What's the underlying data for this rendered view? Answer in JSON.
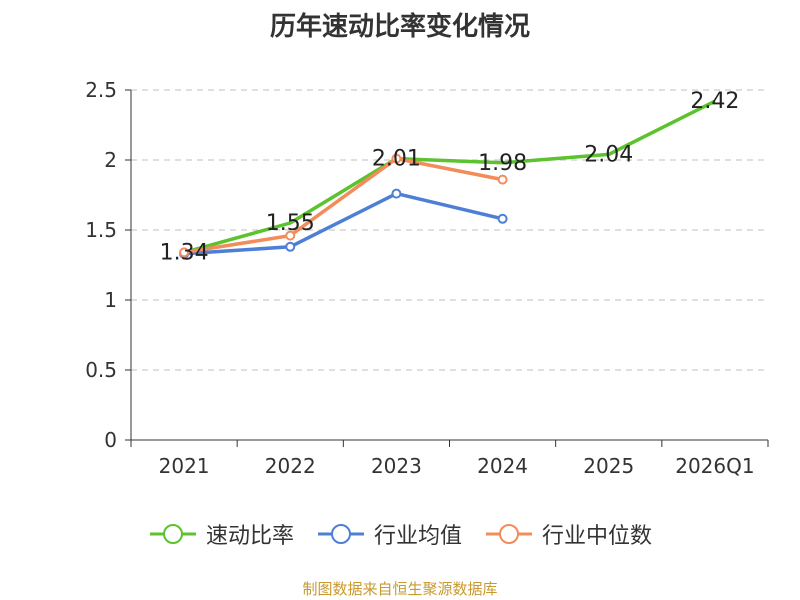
{
  "title": "历年速动比率变化情况",
  "source": "制图数据来自恒生聚源数据库",
  "chart_data": {
    "type": "line",
    "categories": [
      "2021",
      "2022",
      "2023",
      "2024",
      "2025",
      "2026Q1"
    ],
    "ylim": [
      0,
      2.5
    ],
    "yticks": [
      "0",
      "0.5",
      "1",
      "1.5",
      "2",
      "2.5"
    ],
    "ytick_values": [
      0,
      0.5,
      1,
      1.5,
      2,
      2.5
    ],
    "grid": true,
    "legend_position": "bottom",
    "series": [
      {
        "name": "速动比率",
        "color": "#5cc22e",
        "values": [
          1.34,
          1.55,
          2.01,
          1.98,
          2.04,
          2.42
        ],
        "labels": [
          "1.34",
          "1.55",
          "2.01",
          "1.98",
          "2.04",
          "2.42"
        ]
      },
      {
        "name": "行业均值",
        "color": "#4e7fd6",
        "values": [
          1.33,
          1.38,
          1.76,
          1.58,
          null,
          null
        ]
      },
      {
        "name": "行业中位数",
        "color": "#f28c5a",
        "values": [
          1.34,
          1.46,
          2.01,
          1.86,
          null,
          null
        ]
      }
    ]
  }
}
